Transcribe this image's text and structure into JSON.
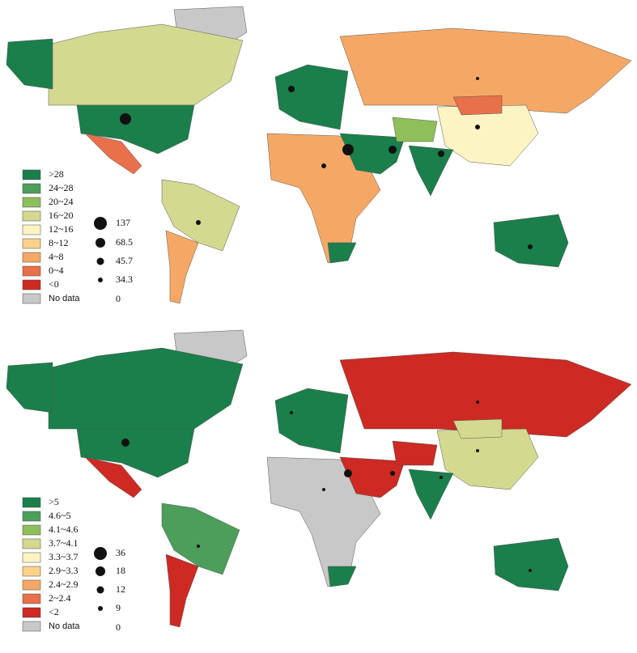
{
  "maps": [
    {
      "legend": {
        "classes": [
          {
            "label": ">28",
            "color": "#1a7f4b"
          },
          {
            "label": "24~28",
            "color": "#4c9e5a"
          },
          {
            "label": "20~24",
            "color": "#8fbf5a"
          },
          {
            "label": "16~20",
            "color": "#d4d990"
          },
          {
            "label": "12~16",
            "color": "#fdf4c4"
          },
          {
            "label": "8~12",
            "color": "#fbd28a"
          },
          {
            "label": "4~8",
            "color": "#f5a865"
          },
          {
            "label": "0~4",
            "color": "#e8704a"
          },
          {
            "label": "<0",
            "color": "#cc2a22"
          },
          {
            "label": "No data",
            "color": "#c8c8c8"
          }
        ],
        "bubbles": [
          "137",
          "68.5",
          "45.7",
          "34.3",
          "0"
        ]
      }
    },
    {
      "legend": {
        "classes": [
          {
            "label": ">5",
            "color": "#1a7f4b"
          },
          {
            "label": "4.6~5",
            "color": "#4c9e5a"
          },
          {
            "label": "4.1~4.6",
            "color": "#8fbf5a"
          },
          {
            "label": "3.7~4.1",
            "color": "#d4d990"
          },
          {
            "label": "3.3~3.7",
            "color": "#fdf4c4"
          },
          {
            "label": "2.9~3.3",
            "color": "#fbd28a"
          },
          {
            "label": "2.4~2.9",
            "color": "#f5a865"
          },
          {
            "label": "2~2.4",
            "color": "#e8704a"
          },
          {
            "label": "<2",
            "color": "#cc2a22"
          },
          {
            "label": "No data",
            "color": "#c8c8c8"
          }
        ],
        "bubbles": [
          "36",
          "18",
          "12",
          "9",
          "0"
        ]
      }
    }
  ]
}
